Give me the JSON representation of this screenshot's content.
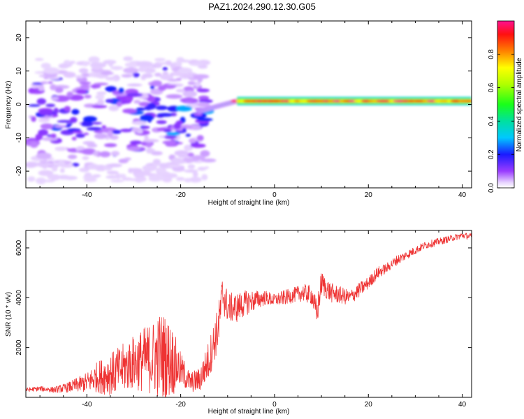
{
  "title": "PAZ1.2024.290.12.30.G05",
  "chart_data": [
    {
      "type": "heatmap",
      "xlabel": "Height of straight line (km)",
      "ylabel": "Frequency (Hz)",
      "xlim": [
        -53,
        42
      ],
      "ylim": [
        -25,
        25
      ],
      "x_ticks": [
        -40,
        -20,
        0,
        20,
        40
      ],
      "y_ticks": [
        -20,
        -10,
        0,
        10,
        20
      ],
      "colorbar": {
        "label": "Normalized spectral amplitude",
        "range": [
          0.0,
          1.0
        ],
        "ticks": [
          0.0,
          0.2,
          0.4,
          0.6,
          0.8
        ]
      },
      "signal_ridge": {
        "x_range": [
          -8,
          42
        ],
        "frequency": 1,
        "normalized_amplitude": 1.0
      },
      "transition": {
        "x_range": [
          -16,
          -8
        ],
        "frequency_from": -2,
        "frequency_to": 1
      },
      "noise_region": {
        "x_range": [
          -52,
          -14
        ],
        "frequency_range": [
          -23,
          14
        ],
        "normalized_amplitude_range": [
          0.05,
          0.3
        ]
      }
    },
    {
      "type": "line",
      "xlabel": "Height of straight line (km)",
      "ylabel": "SNR (10 * v/v)",
      "xlim": [
        -53,
        42
      ],
      "ylim": [
        0,
        6700
      ],
      "x_ticks": [
        -40,
        -20,
        0,
        20,
        40
      ],
      "y_ticks": [
        2000,
        4000,
        6000
      ],
      "series": [
        {
          "color": "#ee3333",
          "x": [
            -53,
            -50,
            -47,
            -44,
            -42,
            -40,
            -38,
            -36,
            -34,
            -32,
            -30,
            -28,
            -26,
            -24,
            -22,
            -20,
            -18,
            -16,
            -14,
            -12,
            -11,
            -10,
            -8,
            -6,
            -4,
            -2,
            0,
            2,
            4,
            6,
            8,
            9,
            10,
            12,
            14,
            16,
            18,
            20,
            22,
            24,
            26,
            28,
            30,
            32,
            34,
            36,
            38,
            40,
            42
          ],
          "y": [
            300,
            350,
            300,
            400,
            500,
            600,
            800,
            900,
            1000,
            1200,
            1400,
            1500,
            1600,
            1700,
            1500,
            1100,
            600,
            700,
            1500,
            2800,
            4200,
            3600,
            3600,
            3800,
            3900,
            4000,
            3900,
            4000,
            4100,
            4200,
            4100,
            3300,
            4600,
            4200,
            4100,
            4000,
            4300,
            4600,
            5000,
            5200,
            5500,
            5700,
            5900,
            6100,
            6200,
            6300,
            6400,
            6500,
            6450
          ],
          "y_spread": [
            80,
            100,
            120,
            200,
            300,
            400,
            600,
            800,
            900,
            1000,
            1100,
            1300,
            1500,
            1800,
            1500,
            700,
            400,
            500,
            800,
            900,
            900,
            600,
            600,
            500,
            400,
            300,
            250,
            300,
            300,
            350,
            400,
            600,
            500,
            400,
            350,
            300,
            300,
            250,
            250,
            200,
            200,
            180,
            160,
            150,
            150,
            140,
            130,
            130,
            130
          ]
        }
      ]
    }
  ]
}
